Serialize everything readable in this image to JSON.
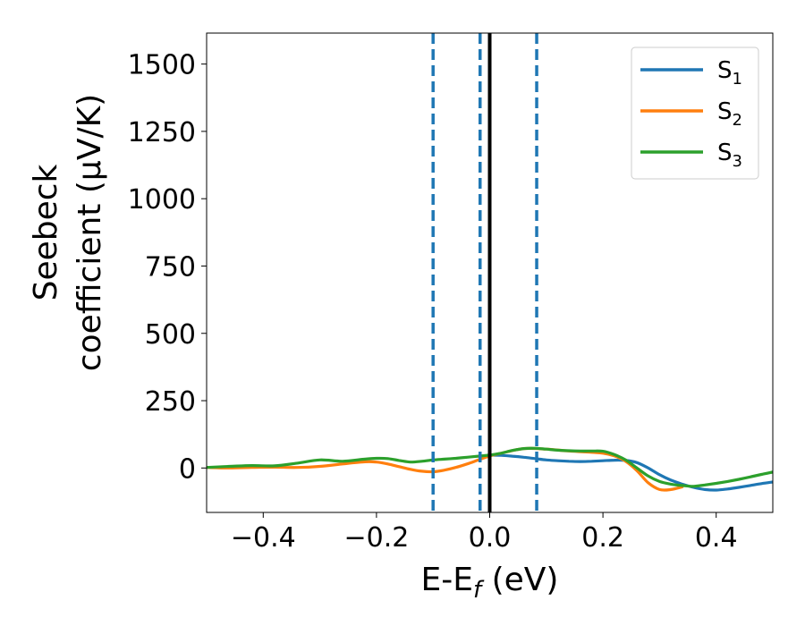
{
  "chart_data": {
    "type": "line",
    "xlabel": "E-E",
    "xlabel_sub": "f",
    "xlabel_unit": " (eV)",
    "ylabel_line1": "Seebeck",
    "ylabel_line2": "coefficient  (μV/K)",
    "xlim": [
      -0.5,
      0.5
    ],
    "ylim": [
      -165,
      1615
    ],
    "xticks": [
      -0.4,
      -0.2,
      0.0,
      0.2,
      0.4
    ],
    "xtick_labels": [
      "−0.4",
      "−0.2",
      "0.0",
      "0.2",
      "0.4"
    ],
    "yticks": [
      0,
      250,
      500,
      750,
      1000,
      1250,
      1500
    ],
    "ytick_labels": [
      "0",
      "250",
      "500",
      "750",
      "1000",
      "1250",
      "1500"
    ],
    "grid": false,
    "legend_position": "top-right",
    "series": [
      {
        "name": "S",
        "subscript": "1",
        "color": "#1f77b4",
        "x": [
          0.0,
          0.02,
          0.04,
          0.06,
          0.08,
          0.1,
          0.12,
          0.14,
          0.16,
          0.18,
          0.2,
          0.22,
          0.24,
          0.26,
          0.28,
          0.3,
          0.32,
          0.34,
          0.36,
          0.38,
          0.4,
          0.42,
          0.44,
          0.46,
          0.48,
          0.5
        ],
        "y": [
          48,
          47,
          44,
          40,
          35,
          30,
          27,
          25,
          24,
          25,
          27,
          29,
          28,
          20,
          0,
          -25,
          -45,
          -60,
          -72,
          -80,
          -82,
          -78,
          -72,
          -65,
          -58,
          -52
        ]
      },
      {
        "name": "S",
        "subscript": "2",
        "color": "#ff7f0e",
        "x": [
          -0.5,
          -0.46,
          -0.42,
          -0.38,
          -0.34,
          -0.3,
          -0.26,
          -0.22,
          -0.2,
          -0.18,
          -0.16,
          -0.14,
          -0.12,
          -0.1,
          -0.08,
          -0.06,
          -0.04,
          -0.02,
          0.0,
          0.02,
          0.06,
          0.1,
          0.14,
          0.18,
          0.2,
          0.22,
          0.24,
          0.26,
          0.28,
          0.3,
          0.32,
          0.34
        ],
        "y": [
          2,
          0,
          2,
          3,
          2,
          6,
          15,
          23,
          22,
          15,
          5,
          -5,
          -12,
          -14,
          -8,
          2,
          15,
          30,
          45,
          55,
          72,
          70,
          63,
          58,
          55,
          45,
          25,
          -10,
          -55,
          -80,
          -80,
          -70
        ]
      },
      {
        "name": "S",
        "subscript": "3",
        "color": "#2ca02c",
        "x": [
          -0.5,
          -0.46,
          -0.42,
          -0.38,
          -0.34,
          -0.3,
          -0.26,
          -0.22,
          -0.2,
          -0.18,
          -0.16,
          -0.14,
          -0.12,
          -0.1,
          -0.08,
          -0.06,
          -0.04,
          -0.02,
          0.0,
          0.02,
          0.04,
          0.06,
          0.08,
          0.1,
          0.12,
          0.14,
          0.16,
          0.18,
          0.2,
          0.22,
          0.24,
          0.26,
          0.28,
          0.3,
          0.32,
          0.34,
          0.36,
          0.38,
          0.4,
          0.42,
          0.44,
          0.46,
          0.48,
          0.5
        ],
        "y": [
          2,
          6,
          9,
          8,
          18,
          30,
          25,
          33,
          36,
          35,
          28,
          22,
          25,
          30,
          33,
          36,
          40,
          44,
          48,
          55,
          65,
          72,
          73,
          70,
          66,
          64,
          63,
          63,
          62,
          50,
          30,
          0,
          -30,
          -50,
          -60,
          -65,
          -68,
          -63,
          -57,
          -50,
          -42,
          -33,
          -24,
          -15
        ]
      }
    ],
    "vlines": [
      {
        "x": -0.1,
        "style": "dashed",
        "color": "#1f77b4"
      },
      {
        "x": -0.017,
        "style": "dashed",
        "color": "#1f77b4"
      },
      {
        "x": 0.0,
        "style": "solid",
        "color": "#000000"
      },
      {
        "x": 0.083,
        "style": "dashed",
        "color": "#1f77b4"
      }
    ]
  }
}
